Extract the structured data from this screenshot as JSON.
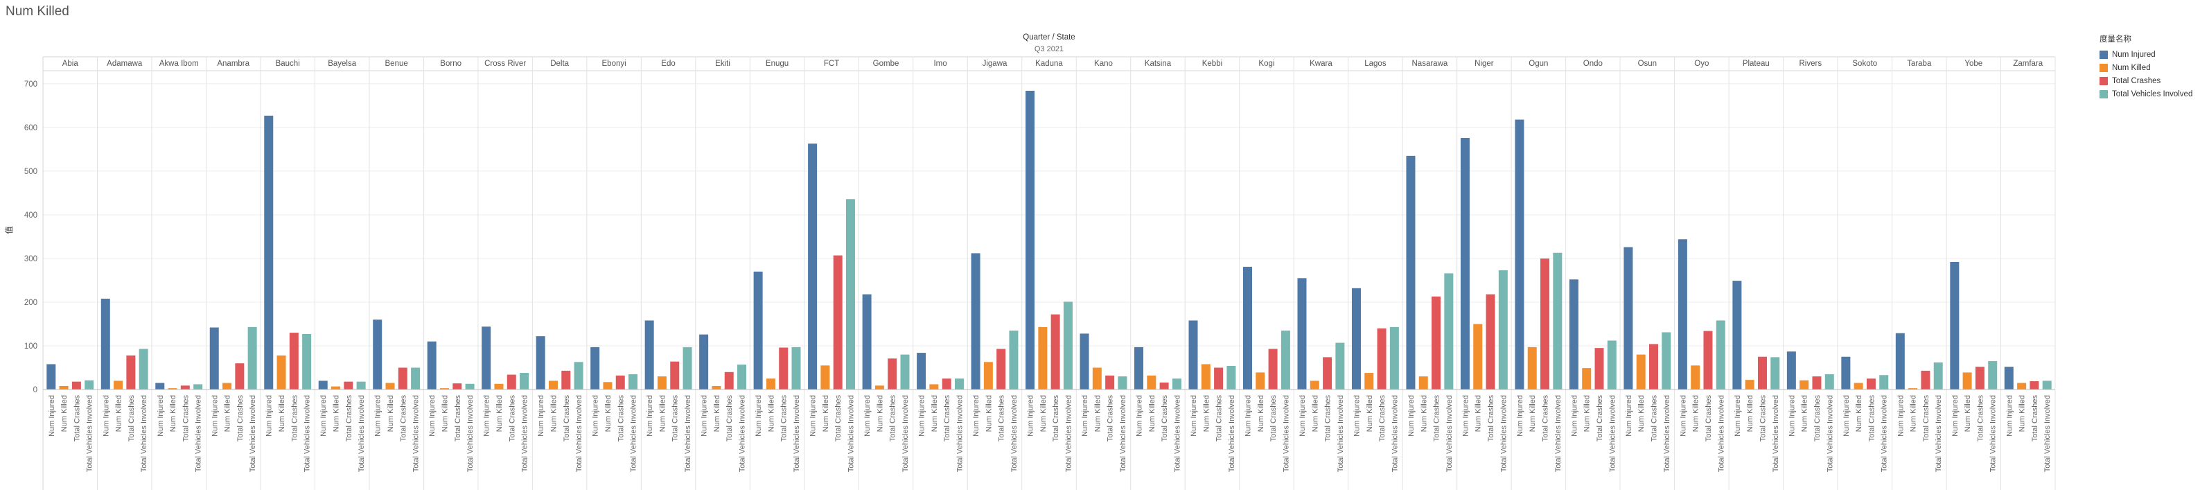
{
  "sheet_title": "Num Killed",
  "colors": {
    "Num Injured": "#4e79a7",
    "Num Killed": "#f28e2b",
    "Total Crashes": "#e15759",
    "Total Vehicles Involved": "#76b7b2"
  },
  "chart_data": {
    "type": "bar",
    "header_title": "Quarter / State",
    "quarter": "Q3 2021",
    "ylabel": "值",
    "ylim": [
      0,
      730
    ],
    "yticks": [
      0,
      100,
      200,
      300,
      400,
      500,
      600,
      700
    ],
    "grid": true,
    "legend_position": "top-right",
    "legend_title": "度量名称",
    "measures": [
      "Num Injured",
      "Num Killed",
      "Total Crashes",
      "Total Vehicles Involved"
    ],
    "states": [
      {
        "name": "Abia",
        "values": [
          58,
          8,
          18,
          21
        ]
      },
      {
        "name": "Adamawa",
        "values": [
          208,
          20,
          78,
          93
        ]
      },
      {
        "name": "Akwa Ibom",
        "values": [
          15,
          3,
          9,
          12
        ]
      },
      {
        "name": "Anambra",
        "values": [
          142,
          15,
          60,
          143
        ]
      },
      {
        "name": "Bauchi",
        "values": [
          627,
          78,
          130,
          127
        ]
      },
      {
        "name": "Bayelsa",
        "values": [
          20,
          7,
          18,
          18
        ]
      },
      {
        "name": "Benue",
        "values": [
          160,
          15,
          50,
          50
        ]
      },
      {
        "name": "Borno",
        "values": [
          110,
          3,
          14,
          13
        ]
      },
      {
        "name": "Cross River",
        "values": [
          144,
          13,
          34,
          38
        ]
      },
      {
        "name": "Delta",
        "values": [
          122,
          20,
          43,
          63
        ]
      },
      {
        "name": "Ebonyi",
        "values": [
          97,
          17,
          32,
          35
        ]
      },
      {
        "name": "Edo",
        "values": [
          158,
          30,
          64,
          97
        ]
      },
      {
        "name": "Ekiti",
        "values": [
          126,
          8,
          40,
          57
        ]
      },
      {
        "name": "Enugu",
        "values": [
          270,
          25,
          96,
          97
        ]
      },
      {
        "name": "FCT",
        "values": [
          563,
          55,
          307,
          436
        ]
      },
      {
        "name": "Gombe",
        "values": [
          218,
          9,
          71,
          80
        ]
      },
      {
        "name": "Imo",
        "values": [
          84,
          12,
          25,
          25
        ]
      },
      {
        "name": "Jigawa",
        "values": [
          312,
          63,
          93,
          135
        ]
      },
      {
        "name": "Kaduna",
        "values": [
          684,
          143,
          172,
          201
        ]
      },
      {
        "name": "Kano",
        "values": [
          128,
          50,
          32,
          30
        ]
      },
      {
        "name": "Katsina",
        "values": [
          97,
          32,
          16,
          25
        ]
      },
      {
        "name": "Kebbi",
        "values": [
          158,
          58,
          50,
          54
        ]
      },
      {
        "name": "Kogi",
        "values": [
          281,
          39,
          93,
          135
        ]
      },
      {
        "name": "Kwara",
        "values": [
          255,
          20,
          74,
          107
        ]
      },
      {
        "name": "Lagos",
        "values": [
          232,
          38,
          140,
          143
        ]
      },
      {
        "name": "Nasarawa",
        "values": [
          535,
          30,
          213,
          266
        ]
      },
      {
        "name": "Niger",
        "values": [
          576,
          150,
          218,
          273
        ]
      },
      {
        "name": "Ogun",
        "values": [
          618,
          97,
          300,
          313
        ]
      },
      {
        "name": "Ondo",
        "values": [
          252,
          49,
          95,
          112
        ]
      },
      {
        "name": "Osun",
        "values": [
          326,
          80,
          104,
          131
        ]
      },
      {
        "name": "Oyo",
        "values": [
          344,
          55,
          134,
          158
        ]
      },
      {
        "name": "Plateau",
        "values": [
          249,
          22,
          75,
          74
        ]
      },
      {
        "name": "Rivers",
        "values": [
          87,
          21,
          30,
          35
        ]
      },
      {
        "name": "Sokoto",
        "values": [
          75,
          15,
          25,
          33
        ]
      },
      {
        "name": "Taraba",
        "values": [
          129,
          3,
          43,
          62
        ]
      },
      {
        "name": "Yobe",
        "values": [
          292,
          39,
          52,
          65
        ]
      },
      {
        "name": "Zamfara",
        "values": [
          52,
          15,
          19,
          20
        ]
      }
    ]
  }
}
